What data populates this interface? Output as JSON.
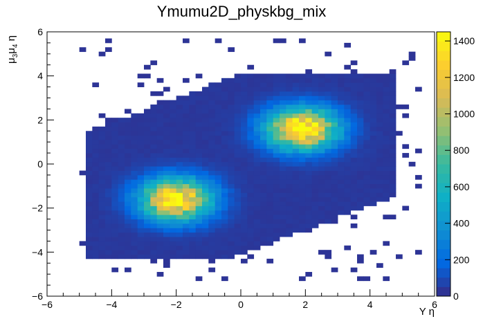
{
  "chart_data": {
    "type": "heatmap",
    "title": "Ymumu2D_physkbg_mix",
    "xlabel": "Y  η",
    "ylabel": {
      "main": "μ",
      "sub1": "3",
      "mid": "μ",
      "sub2": "4",
      "tail": " η"
    },
    "xlim": [
      -6,
      6
    ],
    "ylim": [
      -6,
      6
    ],
    "xticks": [
      "−6",
      "−4",
      "−2",
      "0",
      "2",
      "4",
      "6"
    ],
    "yticks": [
      "−6",
      "−4",
      "−2",
      "0",
      "2",
      "4",
      "6"
    ],
    "zlim": [
      0,
      1450
    ],
    "zticks": [
      "0",
      "200",
      "400",
      "600",
      "800",
      "1000",
      "1200",
      "1400"
    ],
    "colorscale": [
      "#352a87",
      "#0268e1",
      "#108ed2",
      "#0fb0c6",
      "#38b99e",
      "#92bf73",
      "#d9ba56",
      "#fcce2e",
      "#f9fb0e"
    ],
    "clusters": [
      {
        "name": "lower-left",
        "x": -2.0,
        "y": -1.6,
        "peak": 1400
      },
      {
        "name": "upper-right",
        "x": 1.9,
        "y": 1.6,
        "peak": 1450
      }
    ],
    "grid": false
  }
}
